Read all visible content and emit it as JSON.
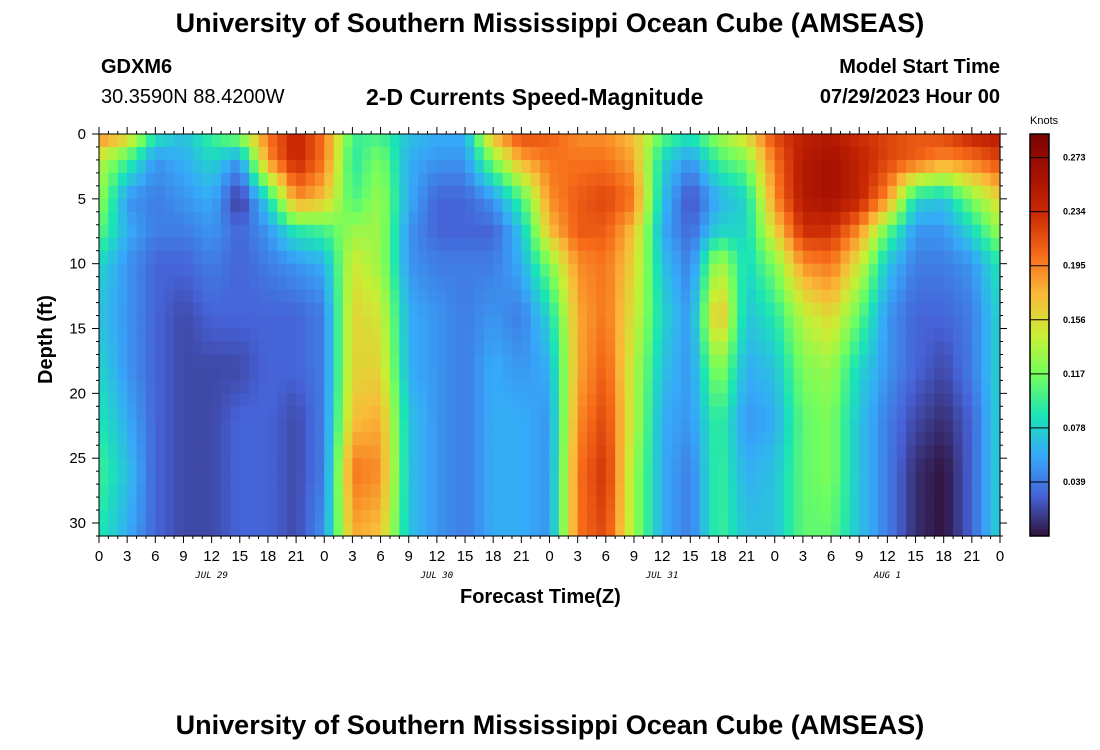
{
  "header": {
    "title": "University of Southern Mississippi Ocean Cube (AMSEAS)",
    "station": "GDXM6",
    "coords": "30.3590N  88.4200W",
    "subtitle": "2-D Currents Speed-Magnitude",
    "model_label": "Model Start Time",
    "model_time": "07/29/2023 Hour 00"
  },
  "footer": {
    "title": "University of Southern Mississippi Ocean Cube (AMSEAS)"
  },
  "colors": {
    "background": "#ffffff",
    "frame": "#000000"
  },
  "chart_data": {
    "type": "heatmap",
    "title": "2-D Currents Speed-Magnitude",
    "xlabel": "Forecast Time(Z)",
    "ylabel": "Depth (ft)",
    "x_tick_labels": [
      "0",
      "3",
      "6",
      "9",
      "12",
      "15",
      "18",
      "21",
      "0",
      "3",
      "6",
      "9",
      "12",
      "15",
      "18",
      "21",
      "0",
      "3",
      "6",
      "9",
      "12",
      "15",
      "18",
      "21",
      "0",
      "3",
      "6",
      "9",
      "12",
      "15",
      "18",
      "21",
      "0"
    ],
    "xlim_hours": [
      0,
      96
    ],
    "day_labels": [
      {
        "label": "JUL 29",
        "hour": 12
      },
      {
        "label": "JUL 30",
        "hour": 36
      },
      {
        "label": "JUL 31",
        "hour": 60
      },
      {
        "label": "AUG 1",
        "hour": 84
      }
    ],
    "ylim_ft": [
      0,
      31
    ],
    "y_ticks": [
      0,
      5,
      10,
      15,
      20,
      25,
      30
    ],
    "colorbar": {
      "units": "Knots",
      "range": [
        0.0,
        0.29
      ],
      "tick_values": [
        0.039,
        0.078,
        0.117,
        0.156,
        0.195,
        0.234,
        0.273
      ],
      "tick_labels": [
        "0.039",
        "0.078",
        "0.117",
        "0.156",
        "0.195",
        "0.234",
        "0.273"
      ]
    },
    "depth_levels_ft": [
      0,
      2,
      5,
      7.5,
      10,
      14,
      18,
      22,
      26,
      31
    ],
    "time_hours": [
      0,
      3,
      6,
      9,
      12,
      15,
      18,
      21,
      24,
      27,
      30,
      33,
      36,
      39,
      42,
      45,
      48,
      51,
      54,
      57,
      60,
      63,
      66,
      69,
      72,
      75,
      78,
      81,
      84,
      87,
      90,
      93,
      96
    ],
    "speed_knots": [
      [
        0.2,
        0.17,
        0.09,
        0.07,
        0.1,
        0.13,
        0.2,
        0.24,
        0.2,
        0.1,
        0.1,
        0.07,
        0.06,
        0.06,
        0.18,
        0.22,
        0.21,
        0.19,
        0.19,
        0.17,
        0.11,
        0.09,
        0.13,
        0.16,
        0.22,
        0.24,
        0.25,
        0.23,
        0.22,
        0.21,
        0.22,
        0.24,
        0.25
      ],
      [
        0.14,
        0.1,
        0.05,
        0.06,
        0.08,
        0.05,
        0.19,
        0.24,
        0.2,
        0.09,
        0.12,
        0.06,
        0.05,
        0.05,
        0.12,
        0.18,
        0.2,
        0.2,
        0.2,
        0.18,
        0.08,
        0.05,
        0.1,
        0.12,
        0.2,
        0.25,
        0.26,
        0.24,
        0.22,
        0.21,
        0.19,
        0.2,
        0.22
      ],
      [
        0.13,
        0.05,
        0.04,
        0.05,
        0.06,
        0.01,
        0.08,
        0.19,
        0.17,
        0.1,
        0.13,
        0.06,
        0.03,
        0.03,
        0.05,
        0.1,
        0.19,
        0.21,
        0.22,
        0.2,
        0.07,
        0.02,
        0.06,
        0.08,
        0.19,
        0.25,
        0.26,
        0.24,
        0.19,
        0.08,
        0.07,
        0.12,
        0.16
      ],
      [
        0.11,
        0.06,
        0.04,
        0.04,
        0.05,
        0.03,
        0.05,
        0.09,
        0.1,
        0.13,
        0.13,
        0.05,
        0.03,
        0.03,
        0.03,
        0.07,
        0.17,
        0.21,
        0.21,
        0.17,
        0.06,
        0.03,
        0.08,
        0.08,
        0.16,
        0.23,
        0.23,
        0.19,
        0.11,
        0.05,
        0.05,
        0.08,
        0.13
      ],
      [
        0.08,
        0.05,
        0.03,
        0.03,
        0.04,
        0.03,
        0.04,
        0.05,
        0.06,
        0.15,
        0.13,
        0.05,
        0.04,
        0.04,
        0.04,
        0.06,
        0.12,
        0.19,
        0.2,
        0.16,
        0.07,
        0.04,
        0.14,
        0.08,
        0.12,
        0.19,
        0.2,
        0.15,
        0.07,
        0.04,
        0.04,
        0.05,
        0.09
      ],
      [
        0.07,
        0.05,
        0.03,
        0.02,
        0.03,
        0.03,
        0.03,
        0.03,
        0.04,
        0.16,
        0.15,
        0.06,
        0.05,
        0.04,
        0.05,
        0.04,
        0.08,
        0.18,
        0.2,
        0.15,
        0.08,
        0.05,
        0.18,
        0.07,
        0.09,
        0.14,
        0.16,
        0.11,
        0.05,
        0.03,
        0.03,
        0.04,
        0.08
      ],
      [
        0.08,
        0.05,
        0.03,
        0.02,
        0.02,
        0.02,
        0.03,
        0.03,
        0.04,
        0.16,
        0.16,
        0.06,
        0.05,
        0.04,
        0.06,
        0.05,
        0.06,
        0.18,
        0.21,
        0.14,
        0.07,
        0.05,
        0.13,
        0.06,
        0.07,
        0.12,
        0.13,
        0.08,
        0.05,
        0.03,
        0.02,
        0.04,
        0.08
      ],
      [
        0.09,
        0.06,
        0.03,
        0.02,
        0.02,
        0.03,
        0.03,
        0.02,
        0.04,
        0.17,
        0.18,
        0.07,
        0.05,
        0.04,
        0.06,
        0.06,
        0.05,
        0.19,
        0.22,
        0.14,
        0.06,
        0.05,
        0.1,
        0.05,
        0.06,
        0.11,
        0.12,
        0.07,
        0.04,
        0.02,
        0.01,
        0.03,
        0.08
      ],
      [
        0.1,
        0.07,
        0.03,
        0.02,
        0.02,
        0.03,
        0.03,
        0.02,
        0.04,
        0.2,
        0.19,
        0.07,
        0.05,
        0.04,
        0.06,
        0.06,
        0.05,
        0.2,
        0.23,
        0.13,
        0.06,
        0.04,
        0.1,
        0.06,
        0.07,
        0.11,
        0.12,
        0.07,
        0.04,
        0.01,
        0.0,
        0.03,
        0.08
      ],
      [
        0.09,
        0.06,
        0.03,
        0.02,
        0.02,
        0.03,
        0.03,
        0.02,
        0.05,
        0.18,
        0.17,
        0.07,
        0.05,
        0.04,
        0.06,
        0.06,
        0.05,
        0.2,
        0.22,
        0.13,
        0.06,
        0.04,
        0.1,
        0.07,
        0.07,
        0.11,
        0.11,
        0.07,
        0.04,
        0.01,
        0.0,
        0.03,
        0.08
      ]
    ]
  }
}
